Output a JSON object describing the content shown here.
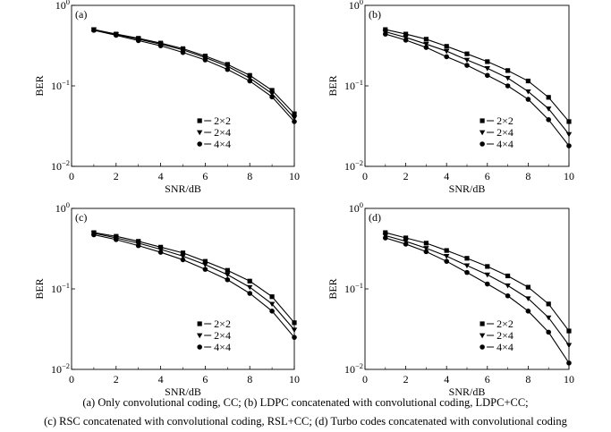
{
  "chart_data": [
    {
      "type": "line",
      "panel_label": "(a)",
      "xlabel": "SNR/dB",
      "ylabel": "BER",
      "xlim": [
        0,
        10
      ],
      "ylim": [
        0.01,
        1
      ],
      "yscale": "log",
      "xticks": [
        "0",
        "2",
        "4",
        "6",
        "8",
        "10"
      ],
      "legend_position": "bottom-right",
      "x": [
        1,
        2,
        3,
        4,
        5,
        6,
        7,
        8,
        9,
        10
      ],
      "series": [
        {
          "name": "2×2",
          "marker": "square",
          "values": [
            0.5,
            0.44,
            0.39,
            0.34,
            0.29,
            0.235,
            0.185,
            0.135,
            0.088,
            0.045
          ]
        },
        {
          "name": "2×4",
          "marker": "triangle-down",
          "values": [
            0.5,
            0.435,
            0.38,
            0.33,
            0.28,
            0.225,
            0.175,
            0.125,
            0.08,
            0.04
          ]
        },
        {
          "name": "4×4",
          "marker": "circle",
          "values": [
            0.49,
            0.425,
            0.365,
            0.315,
            0.26,
            0.21,
            0.16,
            0.115,
            0.073,
            0.036
          ]
        }
      ]
    },
    {
      "type": "line",
      "panel_label": "(b)",
      "xlabel": "SNR/dB",
      "ylabel": "BER",
      "xlim": [
        0,
        10
      ],
      "ylim": [
        0.01,
        1
      ],
      "yscale": "log",
      "xticks": [
        "0",
        "2",
        "4",
        "6",
        "8",
        "10"
      ],
      "legend_position": "bottom-right",
      "x": [
        1,
        2,
        3,
        4,
        5,
        6,
        7,
        8,
        9,
        10
      ],
      "series": [
        {
          "name": "2×2",
          "marker": "square",
          "values": [
            0.5,
            0.44,
            0.38,
            0.31,
            0.25,
            0.2,
            0.155,
            0.115,
            0.072,
            0.036
          ]
        },
        {
          "name": "2×4",
          "marker": "triangle-down",
          "values": [
            0.47,
            0.4,
            0.33,
            0.27,
            0.21,
            0.165,
            0.125,
            0.085,
            0.052,
            0.025
          ]
        },
        {
          "name": "4×4",
          "marker": "circle",
          "values": [
            0.44,
            0.37,
            0.3,
            0.23,
            0.18,
            0.135,
            0.1,
            0.068,
            0.038,
            0.018
          ]
        }
      ]
    },
    {
      "type": "line",
      "panel_label": "(c)",
      "xlabel": "SNR/dB",
      "ylabel": "BER",
      "xlim": [
        0,
        10
      ],
      "ylim": [
        0.01,
        1
      ],
      "yscale": "log",
      "xticks": [
        "0",
        "2",
        "4",
        "6",
        "8",
        "10"
      ],
      "legend_position": "bottom-right",
      "x": [
        1,
        2,
        3,
        4,
        5,
        6,
        7,
        8,
        9,
        10
      ],
      "series": [
        {
          "name": "2×2",
          "marker": "square",
          "values": [
            0.5,
            0.45,
            0.39,
            0.33,
            0.28,
            0.22,
            0.17,
            0.125,
            0.08,
            0.038
          ]
        },
        {
          "name": "2×4",
          "marker": "triangle-down",
          "values": [
            0.49,
            0.43,
            0.37,
            0.31,
            0.255,
            0.2,
            0.15,
            0.105,
            0.065,
            0.031
          ]
        },
        {
          "name": "4×4",
          "marker": "circle",
          "values": [
            0.47,
            0.41,
            0.345,
            0.285,
            0.23,
            0.175,
            0.13,
            0.088,
            0.053,
            0.025
          ]
        }
      ]
    },
    {
      "type": "line",
      "panel_label": "(d)",
      "xlabel": "SNR/dB",
      "ylabel": "BER",
      "xlim": [
        0,
        10
      ],
      "ylim": [
        0.01,
        1
      ],
      "yscale": "log",
      "xticks": [
        "0",
        "2",
        "4",
        "6",
        "8",
        "10"
      ],
      "legend_position": "bottom-right",
      "x": [
        1,
        2,
        3,
        4,
        5,
        6,
        7,
        8,
        9,
        10
      ],
      "series": [
        {
          "name": "2×2",
          "marker": "square",
          "values": [
            0.5,
            0.43,
            0.37,
            0.3,
            0.24,
            0.19,
            0.145,
            0.105,
            0.065,
            0.03
          ]
        },
        {
          "name": "2×4",
          "marker": "triangle-down",
          "values": [
            0.46,
            0.39,
            0.32,
            0.255,
            0.195,
            0.15,
            0.11,
            0.076,
            0.044,
            0.02
          ]
        },
        {
          "name": "4×4",
          "marker": "circle",
          "values": [
            0.43,
            0.36,
            0.29,
            0.22,
            0.16,
            0.115,
            0.082,
            0.053,
            0.029,
            0.012
          ]
        }
      ]
    }
  ],
  "captions": {
    "line1": "(a)  Only convolutional coding, CC; (b) LDPC concatenated with convolutional coding, LDPC+CC;",
    "line2": "(c) RSC concatenated with convolutional coding, RSL+CC; (d) Turbo codes concatenated with convolutional coding"
  }
}
